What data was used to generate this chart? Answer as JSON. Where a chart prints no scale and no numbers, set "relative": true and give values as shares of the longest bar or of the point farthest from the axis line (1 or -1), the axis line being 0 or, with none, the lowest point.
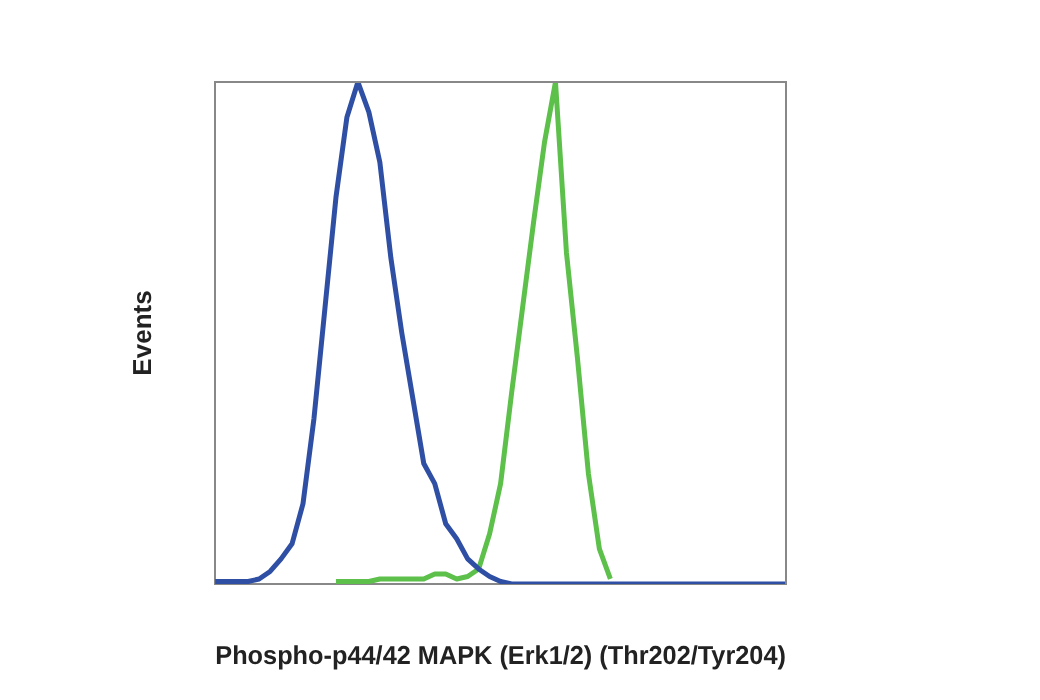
{
  "chart_data": {
    "type": "line",
    "xlabel": "Phospho-p44/42 MAPK (Erk1/2) (Thr202/Tyr204)",
    "ylabel": "Events",
    "relative": true,
    "legend": false,
    "grid": false,
    "marker": "none",
    "categories": [
      null,
      null,
      null,
      null,
      null,
      null,
      null,
      null,
      null,
      null,
      null,
      null,
      null,
      null,
      null,
      null,
      null,
      null,
      null,
      null,
      null,
      null,
      null,
      null,
      null,
      null,
      null,
      null,
      null,
      null,
      null,
      null,
      null,
      null,
      null,
      null,
      null,
      null,
      null,
      null,
      null,
      null,
      null,
      null,
      null,
      null,
      null,
      null,
      null,
      null,
      null,
      null,
      null
    ],
    "series": [
      {
        "color": "#2f4fa5",
        "values": [
          0.005,
          0.005,
          0.005,
          0.005,
          0.01,
          0.025,
          0.05,
          0.08,
          0.16,
          0.33,
          0.55,
          0.77,
          0.93,
          1.0,
          0.94,
          0.84,
          0.65,
          0.5,
          0.37,
          0.24,
          0.2,
          0.12,
          0.09,
          0.05,
          0.03,
          0.015,
          0.005,
          0,
          0,
          0,
          0,
          0,
          0,
          0,
          0,
          0,
          0,
          0,
          0,
          0,
          0,
          0,
          0,
          0,
          0,
          0,
          0,
          0,
          0,
          0,
          0,
          0,
          0
        ]
      },
      {
        "color": "#5cc04a",
        "values": [
          null,
          null,
          null,
          null,
          null,
          null,
          null,
          null,
          null,
          null,
          null,
          0.005,
          0.005,
          0.005,
          0.005,
          0.01,
          0.01,
          0.01,
          0.01,
          0.01,
          0.02,
          0.02,
          0.01,
          0.015,
          0.03,
          0.1,
          0.2,
          0.38,
          0.55,
          0.72,
          0.88,
          1.0,
          0.66,
          0.45,
          0.22,
          0.07,
          0.01,
          null,
          null,
          null,
          null,
          null,
          null,
          null,
          null,
          null,
          null,
          null,
          null,
          null,
          null,
          null,
          null
        ]
      }
    ]
  }
}
